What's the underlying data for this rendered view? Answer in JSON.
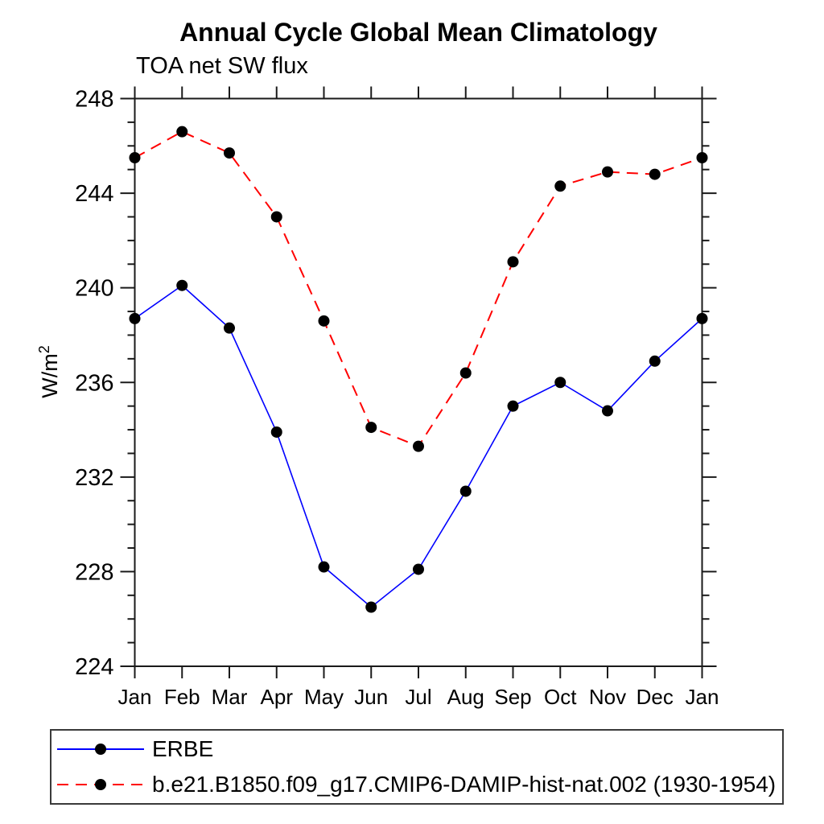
{
  "page": {
    "background": "#ffffff"
  },
  "chart": {
    "ylabel_base": "W/m",
    "ylabel_exp": "2"
  },
  "chart_data": {
    "type": "line",
    "title": "Annual Cycle Global Mean Climatology",
    "subtitle": "TOA net SW flux",
    "xlabel": "",
    "ylabel": "W/m2",
    "categories": [
      "Jan",
      "Feb",
      "Mar",
      "Apr",
      "May",
      "Jun",
      "Jul",
      "Aug",
      "Sep",
      "Oct",
      "Nov",
      "Dec",
      "Jan"
    ],
    "ylim": [
      224,
      248
    ],
    "ytick_major_interval": 4,
    "ytick_minor_interval": 1,
    "ytick_labels": [
      "224",
      "228",
      "232",
      "236",
      "240",
      "244",
      "248"
    ],
    "grid": false,
    "legend_position": "bottom-left-box",
    "frame_color": "#1a1a1a",
    "series": [
      {
        "name": "ERBE",
        "color": "#0000ff",
        "line_style": "solid",
        "marker": "filled-circle",
        "marker_color": "#000000",
        "values": [
          238.7,
          240.1,
          238.3,
          233.9,
          228.2,
          226.5,
          228.1,
          231.4,
          235.0,
          236.0,
          234.8,
          236.9,
          238.7
        ]
      },
      {
        "name": "b.e21.B1850.f09_g17.CMIP6-DAMIP-hist-nat.002 (1930-1954)",
        "color": "#ff0000",
        "line_style": "dashed",
        "marker": "filled-circle",
        "marker_color": "#000000",
        "values": [
          245.5,
          246.6,
          245.7,
          243.0,
          238.6,
          234.1,
          233.3,
          236.4,
          241.1,
          244.3,
          244.9,
          244.8,
          245.5
        ]
      }
    ]
  }
}
